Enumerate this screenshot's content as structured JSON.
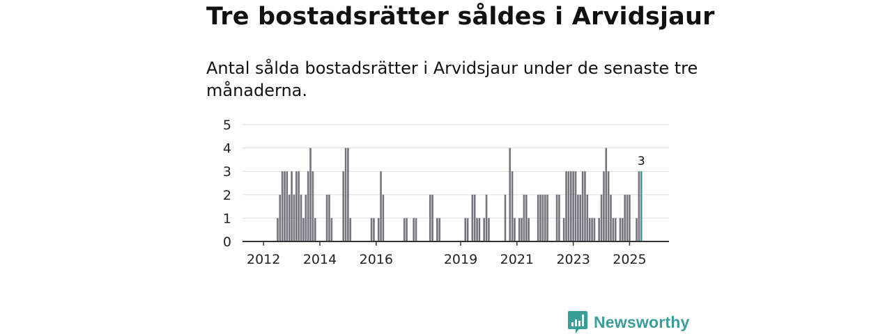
{
  "header": {
    "title": "Tre bostadsrätter såldes i Arvidsjaur",
    "subtitle": "Antal sålda bostadsrätter i Arvidsjaur under de senaste tre månaderna."
  },
  "brand": {
    "name": "Newsworthy",
    "icon": "newsworthy-logo-icon",
    "color": "#3a9e98"
  },
  "colors": {
    "bar": "#74727a",
    "highlight": "#3a9e98",
    "grid": "#dddddd",
    "axis": "#333333"
  },
  "chart_data": {
    "type": "bar",
    "title": "",
    "xlabel": "",
    "ylabel": "",
    "ylim": [
      0,
      5
    ],
    "yticks": [
      0,
      1,
      2,
      3,
      4,
      5
    ],
    "xticks": [
      "2012",
      "2014",
      "2016",
      "2019",
      "2021",
      "2023",
      "2025"
    ],
    "x_start": "2011-07",
    "highlight_label": "3",
    "values": [
      0,
      0,
      0,
      0,
      0,
      0,
      0,
      0,
      0,
      0,
      0,
      0,
      1,
      2,
      3,
      3,
      3,
      2,
      3,
      2,
      3,
      3,
      2,
      1,
      2,
      3,
      4,
      3,
      1,
      0,
      0,
      0,
      0,
      2,
      2,
      1,
      0,
      0,
      0,
      0,
      3,
      4,
      4,
      1,
      0,
      0,
      0,
      0,
      0,
      0,
      0,
      0,
      1,
      1,
      0,
      1,
      3,
      2,
      0,
      0,
      0,
      0,
      0,
      0,
      0,
      0,
      1,
      1,
      0,
      0,
      1,
      1,
      0,
      0,
      0,
      0,
      0,
      2,
      2,
      0,
      1,
      1,
      0,
      0,
      0,
      0,
      0,
      0,
      0,
      0,
      0,
      0,
      1,
      1,
      0,
      2,
      2,
      1,
      1,
      0,
      1,
      2,
      1,
      0,
      0,
      0,
      0,
      0,
      0,
      2,
      0,
      4,
      3,
      1,
      0,
      1,
      1,
      2,
      2,
      1,
      0,
      0,
      0,
      2,
      2,
      2,
      2,
      2,
      0,
      0,
      0,
      2,
      2,
      0,
      1,
      3,
      3,
      3,
      3,
      3,
      2,
      2,
      3,
      3,
      2,
      1,
      1,
      1,
      0,
      1,
      2,
      3,
      4,
      3,
      2,
      1,
      1,
      0,
      1,
      1,
      2,
      2,
      2,
      0,
      0,
      1,
      3,
      3
    ]
  }
}
